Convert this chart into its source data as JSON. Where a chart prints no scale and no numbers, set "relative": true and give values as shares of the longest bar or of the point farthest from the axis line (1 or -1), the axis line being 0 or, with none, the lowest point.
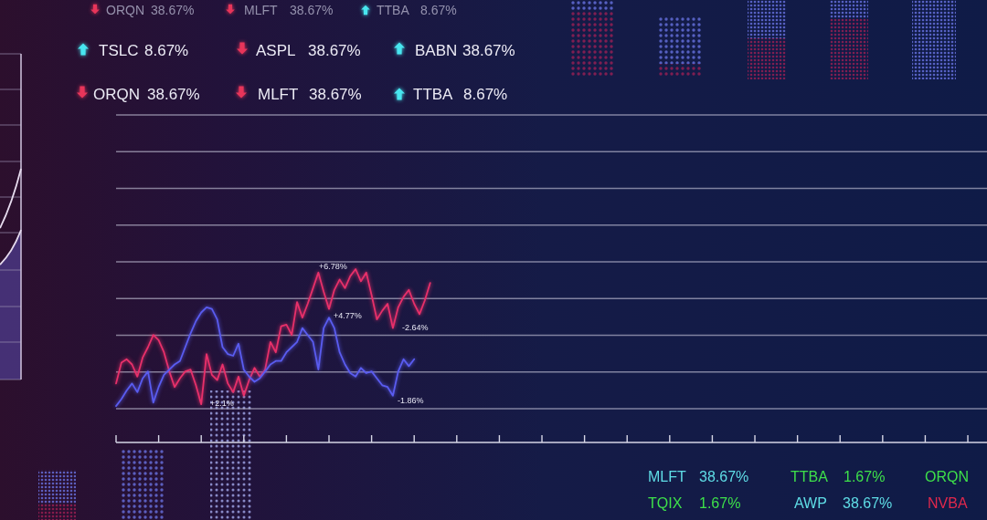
{
  "chart_data": {
    "type": "line",
    "relative": true,
    "grid": "y",
    "categories": [
      null,
      null,
      null,
      null,
      null,
      null,
      null,
      null,
      null,
      null,
      null,
      null,
      null,
      null,
      null,
      null,
      null,
      null,
      null,
      null,
      null,
      null,
      null,
      null,
      null,
      null,
      null,
      null,
      null,
      null,
      null,
      null,
      null,
      null,
      null,
      null,
      null,
      null,
      null,
      null,
      null,
      null,
      null,
      null,
      null,
      null,
      null,
      null,
      null,
      null,
      null,
      null,
      null,
      null,
      null,
      null,
      null,
      null,
      null,
      null,
      null,
      null,
      null,
      null,
      null,
      null,
      null,
      null,
      null,
      null,
      null,
      null,
      null,
      null,
      null,
      null,
      null,
      null,
      null,
      null,
      null,
      null,
      null,
      null,
      null,
      null,
      null,
      null,
      null,
      null,
      null,
      null,
      null,
      null,
      null,
      null,
      null,
      null,
      null,
      null,
      null,
      null,
      null,
      null,
      null,
      null,
      null,
      null,
      null,
      null,
      null,
      null,
      null,
      null,
      null,
      null,
      null,
      null,
      null,
      null,
      null,
      null,
      null,
      null,
      null,
      null,
      null,
      null,
      null,
      null,
      null,
      null,
      null,
      null,
      null,
      null,
      null,
      null,
      null,
      null,
      null,
      null,
      null,
      null,
      null,
      null,
      null,
      null,
      null,
      null,
      null,
      null,
      null,
      null,
      null,
      null,
      null,
      null,
      null,
      null,
      null,
      null,
      null,
      null
    ],
    "series": [
      {
        "color": "#e8306a",
        "values": [
          0.34,
          0.46,
          0.48,
          0.45,
          0.38,
          0.49,
          0.55,
          0.62,
          0.59,
          0.52,
          0.41,
          0.32,
          0.37,
          0.41,
          0.42,
          0.33,
          0.22,
          0.51,
          0.39,
          0.36,
          0.45,
          0.34,
          0.29,
          0.38,
          0.27,
          0.36,
          0.43,
          0.38,
          0.42,
          0.58,
          0.52,
          0.67,
          0.68,
          0.62,
          0.81,
          0.72,
          0.8,
          0.89,
          0.98,
          0.87,
          0.77,
          0.88,
          0.94,
          0.89,
          0.96,
          1.0,
          0.93,
          0.98,
          0.85,
          0.71,
          0.76,
          0.8,
          0.66,
          0.78,
          0.84,
          0.88,
          0.8,
          0.74,
          0.82,
          0.92,
          null,
          null,
          null,
          null,
          null,
          null,
          null,
          null,
          null,
          null,
          null,
          null,
          null,
          null,
          null,
          null,
          null,
          null,
          null,
          null,
          null,
          null,
          null,
          null,
          null,
          null,
          null,
          null,
          null,
          null,
          null,
          null,
          null,
          null,
          null,
          null,
          null,
          null,
          null,
          null,
          null,
          null,
          null,
          null,
          null,
          null,
          null,
          null,
          null,
          null,
          null,
          null,
          null,
          null,
          null,
          null,
          null,
          null,
          null,
          null,
          null,
          null,
          null,
          null,
          null,
          null,
          null,
          null,
          null,
          null,
          null,
          null,
          null,
          null,
          null,
          null,
          null,
          null,
          null,
          null,
          null,
          null,
          null,
          null,
          null,
          null,
          null,
          null,
          null,
          null,
          null,
          null,
          null,
          null,
          null,
          null,
          null,
          null,
          null,
          null,
          null,
          null,
          null,
          null
        ]
      },
      {
        "color": "#5a5cf0",
        "values": [
          0.21,
          0.25,
          0.3,
          0.34,
          0.29,
          0.37,
          0.41,
          0.23,
          0.32,
          0.39,
          0.42,
          0.45,
          0.47,
          0.55,
          0.63,
          0.7,
          0.75,
          0.78,
          0.77,
          0.71,
          0.55,
          0.51,
          0.5,
          0.57,
          0.42,
          0.38,
          0.35,
          0.37,
          0.41,
          0.45,
          0.47,
          0.47,
          0.52,
          0.55,
          0.58,
          0.66,
          0.62,
          0.58,
          0.42,
          0.66,
          0.72,
          0.66,
          0.52,
          0.45,
          0.4,
          0.38,
          0.43,
          0.4,
          0.41,
          0.37,
          0.33,
          0.32,
          0.27,
          0.41,
          0.48,
          0.44,
          0.48,
          null,
          null,
          null,
          null,
          null,
          null,
          null,
          null,
          null,
          null,
          null,
          null,
          null,
          null,
          null,
          null,
          null,
          null,
          null,
          null,
          null,
          null,
          null,
          null,
          null,
          null,
          null,
          null,
          null,
          null,
          null,
          null,
          null,
          null,
          null,
          null,
          null,
          null,
          null,
          null,
          null,
          null,
          null,
          null,
          null,
          null,
          null,
          null,
          null,
          null,
          null,
          null,
          null,
          null,
          null,
          null,
          null,
          null,
          null,
          null,
          null,
          null,
          null,
          null,
          null,
          null,
          null,
          null,
          null,
          null,
          null,
          null,
          null,
          null,
          null,
          null,
          null,
          null,
          null,
          null,
          null,
          null,
          null,
          null,
          null,
          null,
          null,
          null,
          null,
          null,
          null,
          null,
          null,
          null,
          null,
          null,
          null,
          null,
          null,
          null,
          null,
          null,
          null,
          null,
          null,
          null,
          null
        ]
      }
    ],
    "annotations": [
      "ORQN",
      "38.67%",
      "MLFT",
      "38.67%",
      "TTBA",
      "8.67%",
      "TSLC",
      "8.67%",
      "ASPL",
      "38.67%",
      "BABN",
      "38.67%",
      "ORQN",
      "38.67%",
      "MLFT",
      "38.67%",
      "TTBA",
      "8.67%",
      "+6.78%",
      "+4.77%",
      "-2.64%",
      "+2.1%",
      "-1.86%",
      "MLFT",
      "38.67%",
      "TTBA",
      "1.67%",
      "ORQN",
      "TQIX",
      "1.67%",
      "AWP",
      "38.67%",
      "NVBA"
    ]
  }
}
